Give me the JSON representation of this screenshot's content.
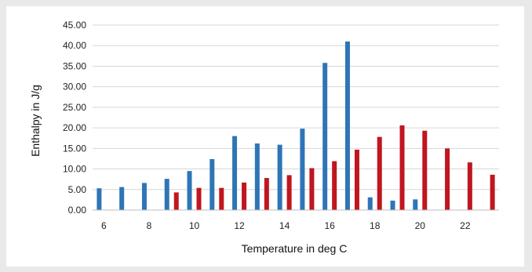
{
  "chart_data": {
    "type": "bar",
    "xlabel": "Temperature in deg C",
    "ylabel": "Enthalpy in J/g",
    "ylim": [
      0,
      45
    ],
    "yticks": [
      "0.00",
      "5.00",
      "10.00",
      "15.00",
      "20.00",
      "25.00",
      "30.00",
      "35.00",
      "40.00",
      "45.00"
    ],
    "xticks": [
      6,
      8,
      10,
      12,
      14,
      16,
      18,
      20,
      22
    ],
    "xlim": [
      5.5,
      23.5
    ],
    "grid": true,
    "series": [
      {
        "color": "#2e75b6",
        "points": [
          {
            "x": 6,
            "y": 5.3
          },
          {
            "x": 7,
            "y": 5.6
          },
          {
            "x": 8,
            "y": 6.6
          },
          {
            "x": 9,
            "y": 7.6
          },
          {
            "x": 10,
            "y": 9.5
          },
          {
            "x": 11,
            "y": 12.4
          },
          {
            "x": 12,
            "y": 18.0
          },
          {
            "x": 13,
            "y": 16.2
          },
          {
            "x": 14,
            "y": 15.9
          },
          {
            "x": 15,
            "y": 19.8
          },
          {
            "x": 16,
            "y": 35.8
          },
          {
            "x": 17,
            "y": 41.0
          },
          {
            "x": 18,
            "y": 3.1
          },
          {
            "x": 19,
            "y": 2.3
          },
          {
            "x": 20,
            "y": 2.6
          }
        ]
      },
      {
        "color": "#c0161f",
        "points": [
          {
            "x": 9,
            "y": 4.3
          },
          {
            "x": 10,
            "y": 5.4
          },
          {
            "x": 11,
            "y": 5.4
          },
          {
            "x": 12,
            "y": 6.7
          },
          {
            "x": 13,
            "y": 7.8
          },
          {
            "x": 14,
            "y": 8.5
          },
          {
            "x": 15,
            "y": 10.2
          },
          {
            "x": 16,
            "y": 11.9
          },
          {
            "x": 17,
            "y": 14.7
          },
          {
            "x": 18,
            "y": 17.8
          },
          {
            "x": 19,
            "y": 20.6
          },
          {
            "x": 20,
            "y": 19.3
          },
          {
            "x": 21,
            "y": 15.0
          },
          {
            "x": 22,
            "y": 11.6
          },
          {
            "x": 23,
            "y": 8.6
          }
        ]
      }
    ]
  }
}
